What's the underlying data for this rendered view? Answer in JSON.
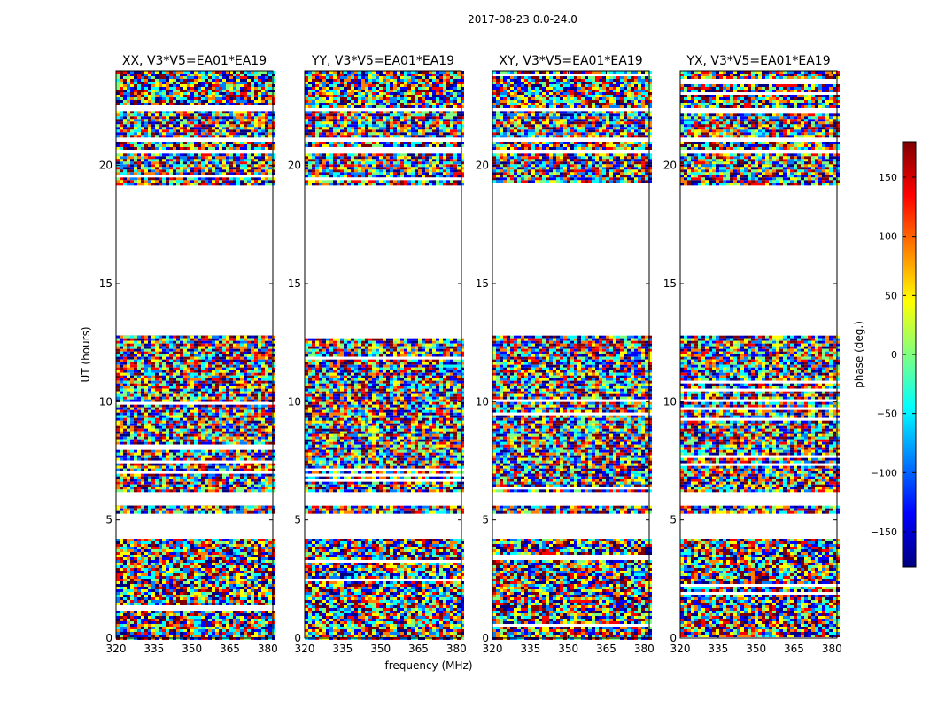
{
  "chart_data": {
    "type": "heatmap",
    "suptitle": "2017-08-23 0.0-24.0",
    "xlabel": "frequency (MHz)",
    "ylabel": "UT (hours)",
    "xlim": [
      320,
      382
    ],
    "ylim": [
      0,
      24
    ],
    "xticks": [
      320,
      335,
      350,
      365,
      380
    ],
    "yticks": [
      0,
      5,
      10,
      15,
      20
    ],
    "panels": [
      {
        "name": "XX",
        "title": "XX, V3*V5=EA01*EA19"
      },
      {
        "name": "YY",
        "title": "YY, V3*V5=EA01*EA19"
      },
      {
        "name": "XY",
        "title": "XY, V3*V5=EA01*EA19"
      },
      {
        "name": "YX",
        "title": "YX, V3*V5=EA01*EA19"
      }
    ],
    "data_rows_ut": [
      [
        0.0,
        4.2
      ],
      [
        4.2,
        4.2
      ],
      [
        5.3,
        5.6
      ],
      [
        6.2,
        6.4
      ],
      [
        6.4,
        12.8
      ],
      [
        19.2,
        20.5
      ],
      [
        20.7,
        21.0
      ],
      [
        21.2,
        22.3
      ],
      [
        22.5,
        24.0
      ]
    ],
    "blank_ut_ranges": [
      [
        4.2,
        4.4
      ],
      [
        5.6,
        6.2
      ],
      [
        12.8,
        19.2
      ]
    ],
    "colorbar": {
      "label": "phase (deg.)",
      "range": [
        -180,
        180
      ],
      "ticks": [
        150,
        100,
        50,
        0,
        -50,
        -100,
        -150
      ],
      "tick_labels": [
        "150",
        "100",
        "50",
        "0",
        "−50",
        "−100",
        "−150"
      ],
      "colormap": [
        "#00007f",
        "#0000ff",
        "#007fff",
        "#00ffff",
        "#7fff7f",
        "#ffff00",
        "#ff7f00",
        "#ff0000",
        "#7f0000"
      ]
    }
  }
}
